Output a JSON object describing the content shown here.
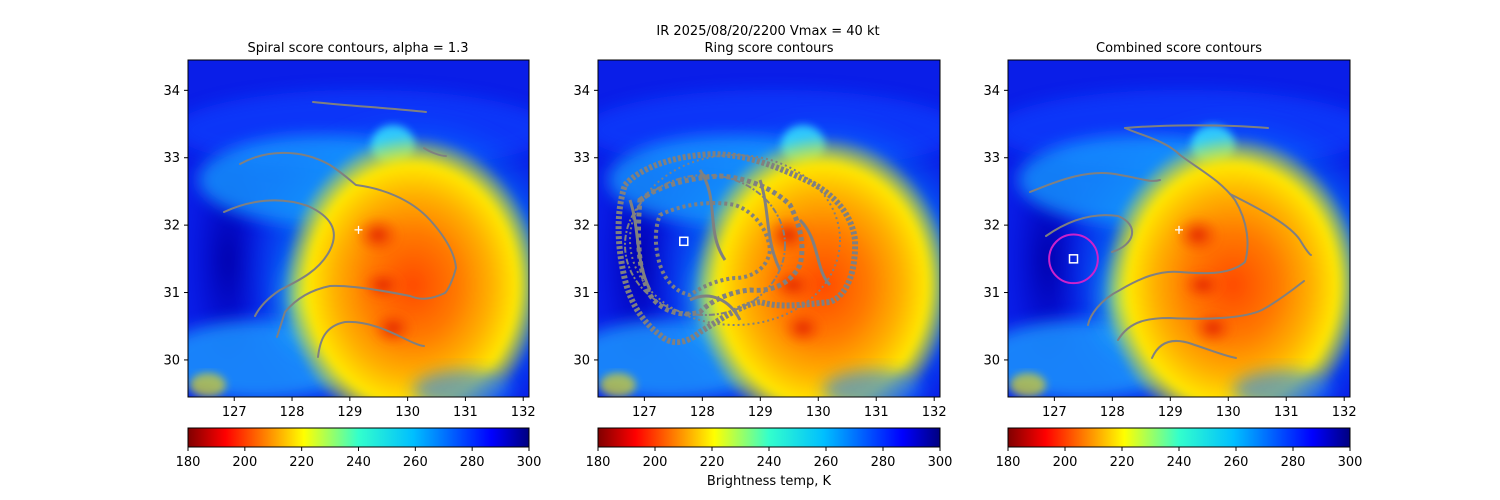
{
  "suptitle_line1": "IR  2025/08/20/2200    Vmax = 40 kt",
  "colorbar_label": "Brightness temp, K",
  "colors": {
    "contour": "#808080",
    "center_marker": "#ffffff",
    "circle": "#cc22cc"
  },
  "chart_data": [
    {
      "type": "heatmap",
      "title": "Spiral score contours, alpha =  1.3",
      "xlim": [
        126.2,
        132.1
      ],
      "ylim": [
        29.45,
        34.45
      ],
      "xticks": [
        "127",
        "128",
        "129",
        "130",
        "131",
        "132"
      ],
      "yticks": [
        "30",
        "31",
        "32",
        "33",
        "34"
      ],
      "overlays": {
        "center_cross": [
          129.15,
          31.93
        ],
        "square": null,
        "circle": null
      },
      "colorbar": {
        "cmap": "jet_r",
        "range": [
          180,
          300
        ],
        "ticks": [
          "180",
          "200",
          "220",
          "240",
          "260",
          "280",
          "300"
        ]
      }
    },
    {
      "type": "heatmap",
      "title": "Ring score contours",
      "xlim": [
        126.2,
        132.1
      ],
      "ylim": [
        29.45,
        34.45
      ],
      "xticks": [
        "127",
        "128",
        "129",
        "130",
        "131",
        "132"
      ],
      "yticks": [
        "30",
        "31",
        "32",
        "33",
        "34"
      ],
      "overlays": {
        "center_cross": null,
        "square": [
          127.68,
          31.76
        ],
        "circle": null
      },
      "colorbar": {
        "cmap": "jet_r",
        "range": [
          180,
          300
        ],
        "ticks": [
          "180",
          "200",
          "220",
          "240",
          "260",
          "280",
          "300"
        ]
      }
    },
    {
      "type": "heatmap",
      "title": "Combined score contours",
      "xlim": [
        126.2,
        132.1
      ],
      "ylim": [
        29.45,
        34.45
      ],
      "xticks": [
        "127",
        "128",
        "129",
        "130",
        "131",
        "132"
      ],
      "yticks": [
        "30",
        "31",
        "32",
        "33",
        "34"
      ],
      "overlays": {
        "center_cross": [
          129.15,
          31.93
        ],
        "square": [
          127.33,
          31.5
        ],
        "circle": {
          "center": [
            127.33,
            31.5
          ],
          "radius_deg": 0.42
        }
      },
      "colorbar": {
        "cmap": "jet_r",
        "range": [
          180,
          300
        ],
        "ticks": [
          "180",
          "200",
          "220",
          "240",
          "260",
          "280",
          "300"
        ]
      }
    }
  ]
}
